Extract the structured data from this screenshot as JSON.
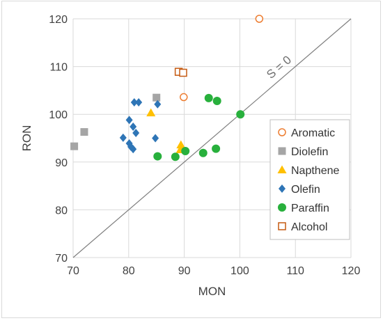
{
  "chart_data": {
    "type": "scatter",
    "title": "",
    "xlabel": "MON",
    "ylabel": "RON",
    "xlim": [
      70,
      120
    ],
    "ylim": [
      70,
      120
    ],
    "x_ticks": [
      70,
      80,
      90,
      100,
      110,
      120
    ],
    "y_ticks": [
      70,
      80,
      90,
      100,
      110,
      120
    ],
    "grid": "vertical-and-horizontal major gridlines",
    "legend_position": "right",
    "reference_line": {
      "label": "S = 0",
      "from": [
        70,
        70
      ],
      "to": [
        120,
        120
      ],
      "color": "#7f7f7f"
    },
    "series": [
      {
        "name": "Aromatic",
        "marker": "circle-open",
        "color": "#ED7D31",
        "points": [
          [
            103.5,
            120.0
          ],
          [
            89.9,
            103.6
          ]
        ]
      },
      {
        "name": "Diolefin",
        "marker": "square",
        "color": "#A5A5A5",
        "points": [
          [
            70.2,
            93.3
          ],
          [
            72.0,
            96.3
          ],
          [
            85.0,
            103.5
          ]
        ]
      },
      {
        "name": "Napthene",
        "marker": "triangle",
        "color": "#FFC000",
        "points": [
          [
            84.0,
            100.3
          ],
          [
            89.4,
            93.6
          ],
          [
            89.3,
            92.6
          ]
        ]
      },
      {
        "name": "Olefin",
        "marker": "diamond",
        "color": "#2E75B6",
        "points": [
          [
            81.0,
            102.5
          ],
          [
            81.8,
            102.5
          ],
          [
            85.2,
            102.1
          ],
          [
            80.1,
            98.8
          ],
          [
            80.8,
            97.4
          ],
          [
            81.3,
            96.1
          ],
          [
            79.0,
            95.1
          ],
          [
            84.8,
            95.0
          ],
          [
            80.1,
            93.9
          ],
          [
            80.4,
            93.2
          ],
          [
            80.8,
            92.7
          ]
        ]
      },
      {
        "name": "Paraffin",
        "marker": "circle",
        "color": "#28B03C",
        "points": [
          [
            94.4,
            103.4
          ],
          [
            95.9,
            102.8
          ],
          [
            100.1,
            100.0
          ],
          [
            90.2,
            92.3
          ],
          [
            93.4,
            91.9
          ],
          [
            95.7,
            92.8
          ],
          [
            85.2,
            91.2
          ],
          [
            88.4,
            91.1
          ]
        ]
      },
      {
        "name": "Alcohol",
        "marker": "square-open",
        "color": "#C55A11",
        "points": [
          [
            89.0,
            108.9
          ],
          [
            89.8,
            108.7
          ]
        ]
      }
    ]
  }
}
